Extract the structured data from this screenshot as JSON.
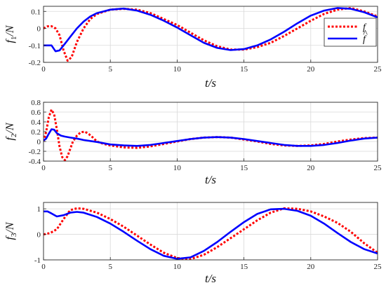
{
  "colors": {
    "f": "#ff0000",
    "f_hat": "#0000ff"
  },
  "legend": {
    "placement": "top-right",
    "entries": [
      {
        "label": "f",
        "hat": false,
        "color": "#ff0000",
        "style": "dotted"
      },
      {
        "label": "f",
        "hat": true,
        "color": "#0000ff",
        "style": "solid"
      }
    ]
  },
  "chart_data": [
    {
      "type": "line",
      "ylabel": "f1/N",
      "ylabel_main": "f",
      "ylabel_sub": "1",
      "ylabel_unit": "/N",
      "xlabel": "t/s",
      "xlim": [
        0,
        25
      ],
      "ylim": [
        -0.2,
        0.13
      ],
      "xticks": [
        0,
        5,
        10,
        15,
        20,
        25
      ],
      "yticks": [
        -0.2,
        -0.1,
        0,
        0.1
      ],
      "grid": true,
      "has_legend": true,
      "series": [
        {
          "name": "f",
          "style": "dotted",
          "color": "#ff0000",
          "x": [
            0,
            0.3,
            0.6,
            0.9,
            1.2,
            1.5,
            1.8,
            2.1,
            2.5,
            3,
            3.5,
            4,
            5,
            6,
            7,
            8,
            9,
            10,
            11,
            12,
            13,
            14,
            15,
            16,
            17,
            18,
            19,
            20,
            21,
            22,
            23,
            24,
            25
          ],
          "y": [
            0,
            0.012,
            0.013,
            0,
            -0.04,
            -0.13,
            -0.19,
            -0.17,
            -0.08,
            0,
            0.055,
            0.085,
            0.11,
            0.115,
            0.11,
            0.09,
            0.055,
            0.02,
            -0.025,
            -0.07,
            -0.105,
            -0.125,
            -0.125,
            -0.11,
            -0.085,
            -0.045,
            0,
            0.045,
            0.085,
            0.11,
            0.12,
            0.1,
            0.07
          ]
        },
        {
          "name": "f-hat",
          "style": "solid",
          "color": "#0000ff",
          "x": [
            0,
            0.3,
            0.6,
            0.9,
            1.2,
            1.5,
            2,
            2.5,
            3,
            3.5,
            4,
            5,
            6,
            7,
            8,
            9,
            10,
            11,
            12,
            13,
            14,
            15,
            16,
            17,
            18,
            19,
            20,
            21,
            22,
            23,
            24,
            25
          ],
          "y": [
            -0.1,
            -0.1,
            -0.1,
            -0.135,
            -0.13,
            -0.1,
            -0.05,
            0,
            0.04,
            0.07,
            0.09,
            0.11,
            0.117,
            0.105,
            0.08,
            0.045,
            0.005,
            -0.04,
            -0.085,
            -0.115,
            -0.128,
            -0.122,
            -0.1,
            -0.065,
            -0.02,
            0.03,
            0.075,
            0.105,
            0.12,
            0.115,
            0.095,
            0.065
          ]
        }
      ]
    },
    {
      "type": "line",
      "ylabel": "f2/N",
      "ylabel_main": "f",
      "ylabel_sub": "2",
      "ylabel_unit": "/N",
      "xlabel": "t/s",
      "xlim": [
        0,
        25
      ],
      "ylim": [
        -0.4,
        0.8
      ],
      "xticks": [
        0,
        5,
        10,
        15,
        20,
        25
      ],
      "yticks": [
        -0.4,
        -0.2,
        0,
        0.2,
        0.4,
        0.6,
        0.8
      ],
      "grid": true,
      "has_legend": false,
      "series": [
        {
          "name": "f",
          "style": "dotted",
          "color": "#ff0000",
          "x": [
            0,
            0.2,
            0.4,
            0.6,
            0.8,
            1,
            1.2,
            1.4,
            1.6,
            1.8,
            2,
            2.2,
            2.5,
            2.8,
            3.1,
            3.4,
            3.7,
            4,
            4.5,
            5,
            6,
            7,
            8,
            9,
            10,
            11,
            12,
            13,
            14,
            15,
            16,
            17,
            18,
            19,
            20,
            21,
            22,
            23,
            24,
            25
          ],
          "y": [
            0,
            0.2,
            0.5,
            0.65,
            0.55,
            0.25,
            -0.1,
            -0.32,
            -0.38,
            -0.3,
            -0.15,
            0,
            0.12,
            0.19,
            0.2,
            0.15,
            0.08,
            0,
            -0.05,
            -0.08,
            -0.12,
            -0.13,
            -0.1,
            -0.05,
            0,
            0.05,
            0.08,
            0.09,
            0.08,
            0.04,
            0,
            -0.05,
            -0.08,
            -0.09,
            -0.08,
            -0.05,
            0,
            0.04,
            0.07,
            0.08
          ]
        },
        {
          "name": "f-hat",
          "style": "solid",
          "color": "#0000ff",
          "x": [
            0,
            0.2,
            0.4,
            0.6,
            0.8,
            1,
            1.3,
            1.6,
            2,
            2.5,
            3,
            3.5,
            4,
            5,
            6,
            7,
            8,
            9,
            10,
            11,
            12,
            13,
            14,
            15,
            16,
            17,
            18,
            19,
            20,
            21,
            22,
            23,
            24,
            25
          ],
          "y": [
            0.02,
            0.06,
            0.16,
            0.25,
            0.24,
            0.17,
            0.12,
            0.1,
            0.08,
            0.06,
            0.03,
            0.01,
            -0.01,
            -0.06,
            -0.08,
            -0.09,
            -0.07,
            -0.03,
            0.01,
            0.05,
            0.08,
            0.09,
            0.08,
            0.05,
            0.01,
            -0.03,
            -0.07,
            -0.09,
            -0.09,
            -0.07,
            -0.03,
            0.02,
            0.06,
            0.08
          ]
        }
      ]
    },
    {
      "type": "line",
      "ylabel": "f3/N",
      "ylabel_main": "f",
      "ylabel_sub": "3",
      "ylabel_unit": "/N",
      "xlabel": "t/s",
      "xlim": [
        0,
        25
      ],
      "ylim": [
        -1,
        1.25
      ],
      "xticks": [
        0,
        5,
        10,
        15,
        20,
        25
      ],
      "yticks": [
        -1,
        0,
        1
      ],
      "grid": true,
      "has_legend": false,
      "series": [
        {
          "name": "f",
          "style": "dotted",
          "color": "#ff0000",
          "x": [
            0,
            0.5,
            1,
            1.5,
            2,
            2.5,
            3,
            4,
            5,
            6,
            7,
            8,
            9,
            10,
            11,
            12,
            13,
            14,
            15,
            16,
            17,
            18,
            19,
            20,
            21,
            22,
            23,
            24,
            25
          ],
          "y": [
            0,
            0.05,
            0.2,
            0.6,
            0.95,
            1.02,
            1.0,
            0.85,
            0.6,
            0.3,
            -0.05,
            -0.4,
            -0.72,
            -0.93,
            -0.97,
            -0.8,
            -0.5,
            -0.15,
            0.2,
            0.55,
            0.85,
            1.02,
            1.0,
            0.9,
            0.7,
            0.45,
            0.1,
            -0.35,
            -0.72
          ]
        },
        {
          "name": "f-hat",
          "style": "solid",
          "color": "#0000ff",
          "x": [
            0,
            0.3,
            0.6,
            1,
            1.5,
            2,
            2.5,
            3,
            4,
            5,
            6,
            7,
            8,
            9,
            10,
            11,
            12,
            13,
            14,
            15,
            16,
            17,
            18,
            19,
            20,
            21,
            22,
            23,
            24,
            25
          ],
          "y": [
            0.9,
            0.9,
            0.82,
            0.7,
            0.75,
            0.85,
            0.88,
            0.85,
            0.68,
            0.42,
            0.1,
            -0.25,
            -0.58,
            -0.84,
            -0.96,
            -0.9,
            -0.65,
            -0.3,
            0.1,
            0.48,
            0.8,
            0.98,
            1.0,
            0.92,
            0.73,
            0.42,
            0.05,
            -0.3,
            -0.58,
            -0.75
          ]
        }
      ]
    }
  ]
}
